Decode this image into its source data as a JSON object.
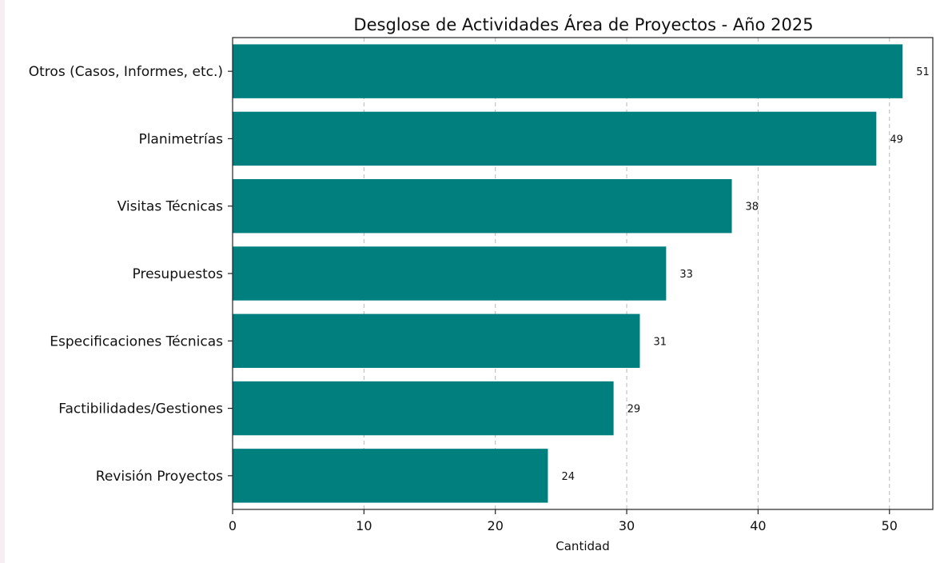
{
  "chart_data": {
    "type": "bar",
    "orientation": "horizontal",
    "title": "Desglose de Actividades Área de Proyectos - Año 2025",
    "xlabel": "Cantidad",
    "ylabel": "",
    "categories": [
      "Otros (Casos, Informes, etc.)",
      "Planimetrías",
      "Visitas Técnicas",
      "Presupuestos",
      "Especificaciones Técnicas",
      "Factibilidades/Gestiones",
      "Revisión Proyectos"
    ],
    "values": [
      51,
      49,
      38,
      33,
      31,
      29,
      24
    ],
    "xlim": [
      0,
      53.3
    ],
    "xticks": [
      0,
      10,
      20,
      30,
      40,
      50
    ],
    "grid": "vertical dashed",
    "bar_color": "#007f7f",
    "legend": "none"
  }
}
